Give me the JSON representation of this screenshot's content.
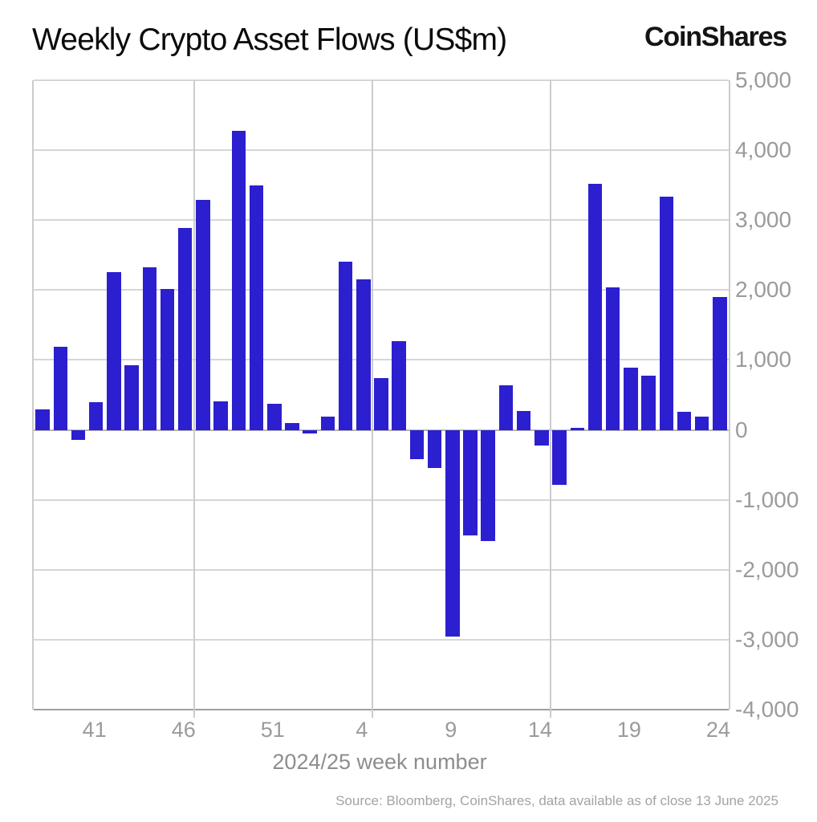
{
  "header": {
    "title": "Weekly Crypto Asset Flows (US$m)",
    "logo": "CoinShares"
  },
  "chart_data": {
    "type": "bar",
    "title": "Weekly Crypto Asset Flows (US$m)",
    "unit": "US$m",
    "xlabel": "2024/25 week number",
    "ylabel": "",
    "ylim": [
      -4000,
      5000
    ],
    "ytick_values": [
      5000,
      4000,
      3000,
      2000,
      1000,
      0,
      -1000,
      -2000,
      -3000,
      -4000
    ],
    "ytick_labels": [
      "5,000",
      "4,000",
      "3,000",
      "2,000",
      "1,000",
      "0",
      "-1,000",
      "-2,000",
      "-3,000",
      "-4,000"
    ],
    "grid": true,
    "legend_position": "none",
    "bar_color": "#2b1fd0",
    "categories": [
      "38",
      "39",
      "40",
      "41",
      "42",
      "43",
      "44",
      "45",
      "46",
      "47",
      "48",
      "49",
      "50",
      "51",
      "52",
      "1",
      "2",
      "3",
      "4",
      "5",
      "6",
      "7",
      "8",
      "9",
      "10",
      "11",
      "12",
      "13",
      "14",
      "15",
      "16",
      "17",
      "18",
      "19",
      "20",
      "21",
      "22",
      "23",
      "24"
    ],
    "values": [
      290,
      1190,
      -140,
      400,
      2260,
      925,
      2330,
      2010,
      2890,
      3290,
      405,
      4280,
      3500,
      370,
      100,
      -55,
      185,
      2410,
      2150,
      740,
      1265,
      -420,
      -545,
      -2960,
      -1505,
      -1590,
      640,
      270,
      -220,
      -790,
      25,
      3520,
      2040,
      890,
      780,
      3330,
      260,
      190,
      1900
    ],
    "xtick_labels": [
      "41",
      "46",
      "51",
      "4",
      "9",
      "14",
      "19",
      "24"
    ],
    "xtick_bar_indices": [
      3,
      8,
      13,
      18,
      23,
      28,
      33,
      38
    ],
    "vgrid_boundary_indices": [
      9,
      19,
      29
    ]
  },
  "footer": {
    "source": "Source: Bloomberg, CoinShares, data available as of close 13 June 2025"
  }
}
